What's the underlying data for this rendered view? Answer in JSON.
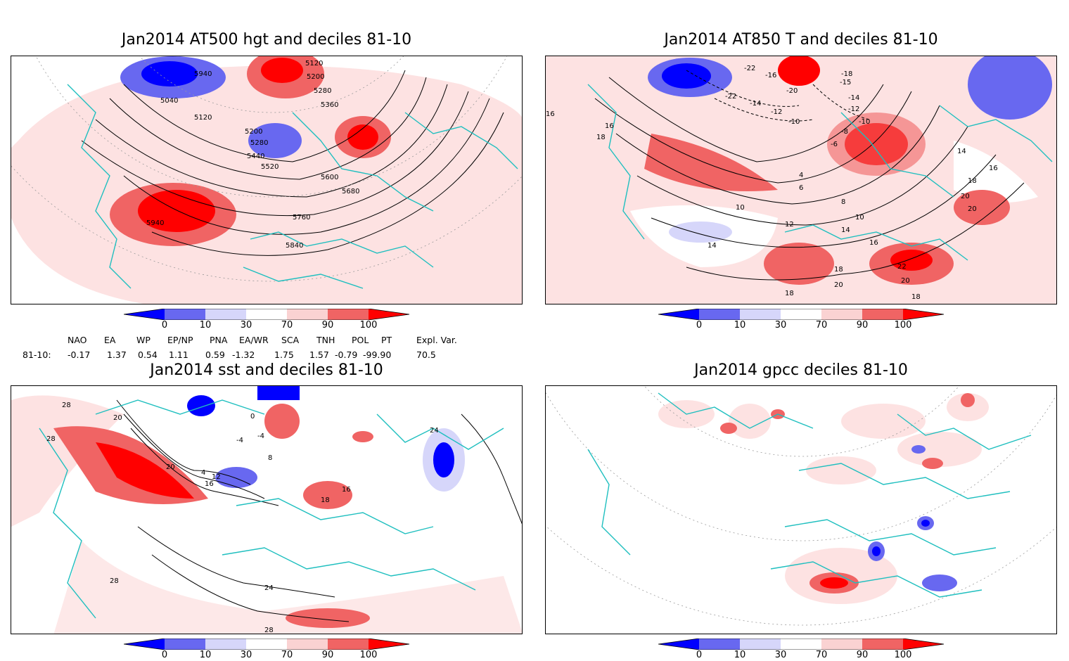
{
  "panels": {
    "p1": {
      "title": "Jan2014 AT500 hgt and deciles 81-10",
      "contour_labels": [
        "5120",
        "5200",
        "5280",
        "5360",
        "5940",
        "5040",
        "5120",
        "5200",
        "5280",
        "5440",
        "5520",
        "5600",
        "5680",
        "5760",
        "5840",
        "5940"
      ]
    },
    "p2": {
      "title": "Jan2014 AT850 T and deciles 81-10",
      "contour_labels": [
        "16",
        "18",
        "16",
        "-22",
        "-16",
        "-20",
        "-18",
        "-15",
        "-14",
        "-12",
        "-10",
        "-8",
        "-6",
        "-22",
        "-14",
        "-12",
        "-10",
        "4",
        "6",
        "8",
        "10",
        "10",
        "12",
        "14",
        "14",
        "16",
        "18",
        "20",
        "18",
        "22",
        "20",
        "18",
        "20",
        "14",
        "16",
        "18",
        "20"
      ]
    },
    "p3": {
      "title": "Jan2014 sst and deciles 81-10",
      "contour_labels": [
        "28",
        "28",
        "20",
        "20",
        "4",
        "12",
        "16",
        "0",
        "-4",
        "-4",
        "8",
        "16",
        "18",
        "24",
        "24",
        "28",
        "28"
      ]
    },
    "p4": {
      "title": "Jan2014 gpcc deciles 81-10"
    }
  },
  "colorbar": {
    "ticks": [
      "0",
      "10",
      "30",
      "70",
      "90",
      "100"
    ],
    "colors": [
      "#0000ff",
      "#6868f0",
      "#d6d6fa",
      "#ffffff",
      "#fad2d2",
      "#f06464",
      "#ff0000"
    ]
  },
  "indices": {
    "headers": [
      "NAO",
      "EA",
      "WP",
      "EP/NP",
      "PNA",
      "EA/WR",
      "SCA",
      "TNH",
      "POL",
      "PT",
      "Expl. Var."
    ],
    "row_label": "81-10:",
    "values": [
      "-0.17",
      "1.37",
      "0.54",
      "1.11",
      "0.59",
      "-1.32",
      "1.75",
      "1.57",
      "-0.79",
      "-99.90",
      "70.5"
    ]
  },
  "coastline_color": "#1fbfbf"
}
